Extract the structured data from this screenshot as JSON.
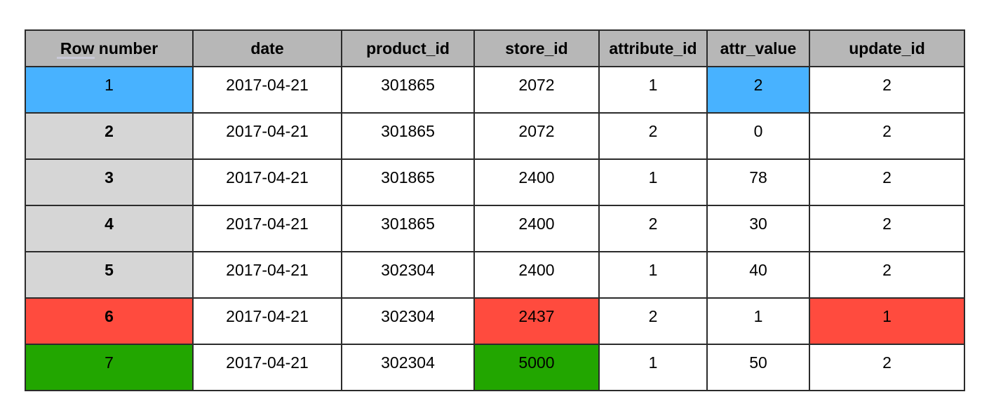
{
  "table": {
    "header": [
      "Row number",
      "date",
      "product_id",
      "store_id",
      "attribute_id",
      "attr_value",
      "update_id"
    ],
    "rows": [
      [
        1,
        "2017-04-21",
        301865,
        2072,
        1,
        2,
        2
      ],
      [
        2,
        "2017-04-21",
        301865,
        2072,
        2,
        0,
        2
      ],
      [
        3,
        "2017-04-21",
        301865,
        2400,
        1,
        78,
        2
      ],
      [
        4,
        "2017-04-21",
        301865,
        2400,
        2,
        30,
        2
      ],
      [
        5,
        "2017-04-21",
        302304,
        2400,
        1,
        40,
        2
      ],
      [
        6,
        "2017-04-21",
        302304,
        2437,
        2,
        1,
        1
      ],
      [
        7,
        "2017-04-21",
        302304,
        5000,
        1,
        50,
        2
      ]
    ]
  }
}
